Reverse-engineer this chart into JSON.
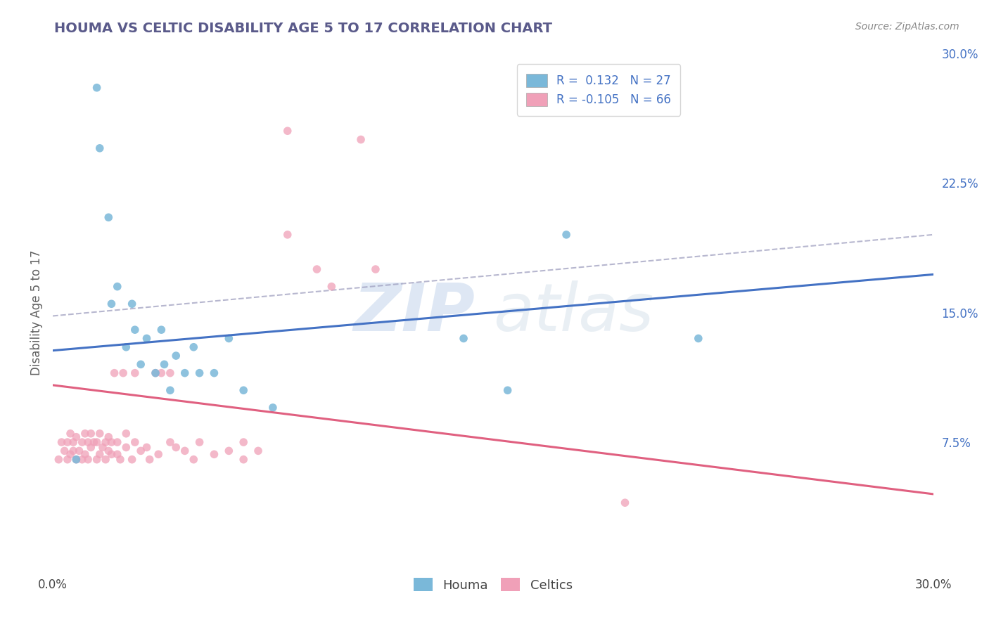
{
  "title": "HOUMA VS CELTIC DISABILITY AGE 5 TO 17 CORRELATION CHART",
  "source": "Source: ZipAtlas.com",
  "ylabel": "Disability Age 5 to 17",
  "xmin": 0.0,
  "xmax": 0.3,
  "ymin": 0.0,
  "ymax": 0.3,
  "ytick_labels_right": [
    "7.5%",
    "15.0%",
    "22.5%",
    "30.0%"
  ],
  "ytick_vals_right": [
    0.075,
    0.15,
    0.225,
    0.3
  ],
  "legend_r1": "R =  0.132",
  "legend_n1": "N = 27",
  "legend_r2": "R = -0.105",
  "legend_n2": "N = 66",
  "houma_color": "#7ab8d9",
  "celtics_color": "#f0a0b8",
  "houma_line_color": "#4472c4",
  "celtics_line_color": "#e06080",
  "houma_line_x": [
    0.0,
    0.3
  ],
  "houma_line_y": [
    0.128,
    0.172
  ],
  "celtics_line_x": [
    0.0,
    0.3
  ],
  "celtics_line_y": [
    0.108,
    0.045
  ],
  "gray_line_x": [
    0.0,
    0.3
  ],
  "gray_line_y": [
    0.148,
    0.195
  ],
  "houma_scatter_x": [
    0.008,
    0.015,
    0.016,
    0.019,
    0.02,
    0.022,
    0.025,
    0.027,
    0.028,
    0.03,
    0.032,
    0.035,
    0.037,
    0.038,
    0.04,
    0.042,
    0.045,
    0.048,
    0.05,
    0.055,
    0.06,
    0.065,
    0.075,
    0.14,
    0.155,
    0.175,
    0.22
  ],
  "houma_scatter_y": [
    0.065,
    0.28,
    0.245,
    0.205,
    0.155,
    0.165,
    0.13,
    0.155,
    0.14,
    0.12,
    0.135,
    0.115,
    0.14,
    0.12,
    0.105,
    0.125,
    0.115,
    0.13,
    0.115,
    0.115,
    0.135,
    0.105,
    0.095,
    0.135,
    0.105,
    0.195,
    0.135
  ],
  "celtics_scatter_x": [
    0.002,
    0.003,
    0.004,
    0.005,
    0.005,
    0.006,
    0.006,
    0.007,
    0.007,
    0.008,
    0.008,
    0.009,
    0.01,
    0.01,
    0.011,
    0.011,
    0.012,
    0.012,
    0.013,
    0.013,
    0.014,
    0.015,
    0.015,
    0.016,
    0.016,
    0.017,
    0.018,
    0.018,
    0.019,
    0.019,
    0.02,
    0.02,
    0.021,
    0.022,
    0.022,
    0.023,
    0.024,
    0.025,
    0.025,
    0.027,
    0.028,
    0.028,
    0.03,
    0.032,
    0.033,
    0.035,
    0.036,
    0.037,
    0.04,
    0.04,
    0.042,
    0.045,
    0.048,
    0.05,
    0.055,
    0.06,
    0.065,
    0.065,
    0.07,
    0.08,
    0.08,
    0.09,
    0.095,
    0.105,
    0.11,
    0.195
  ],
  "celtics_scatter_y": [
    0.065,
    0.075,
    0.07,
    0.065,
    0.075,
    0.068,
    0.08,
    0.07,
    0.075,
    0.065,
    0.078,
    0.07,
    0.065,
    0.075,
    0.068,
    0.08,
    0.065,
    0.075,
    0.072,
    0.08,
    0.075,
    0.065,
    0.075,
    0.068,
    0.08,
    0.072,
    0.065,
    0.075,
    0.07,
    0.078,
    0.068,
    0.075,
    0.115,
    0.075,
    0.068,
    0.065,
    0.115,
    0.072,
    0.08,
    0.065,
    0.115,
    0.075,
    0.07,
    0.072,
    0.065,
    0.115,
    0.068,
    0.115,
    0.115,
    0.075,
    0.072,
    0.07,
    0.065,
    0.075,
    0.068,
    0.07,
    0.065,
    0.075,
    0.07,
    0.255,
    0.195,
    0.175,
    0.165,
    0.25,
    0.175,
    0.04
  ],
  "watermark_zip": "ZIP",
  "watermark_atlas": "atlas",
  "bg_color": "#ffffff",
  "grid_color": "#c8c8c8",
  "title_color": "#5a5a8a",
  "axis_label_color": "#606060",
  "tick_color_right": "#4472c4"
}
